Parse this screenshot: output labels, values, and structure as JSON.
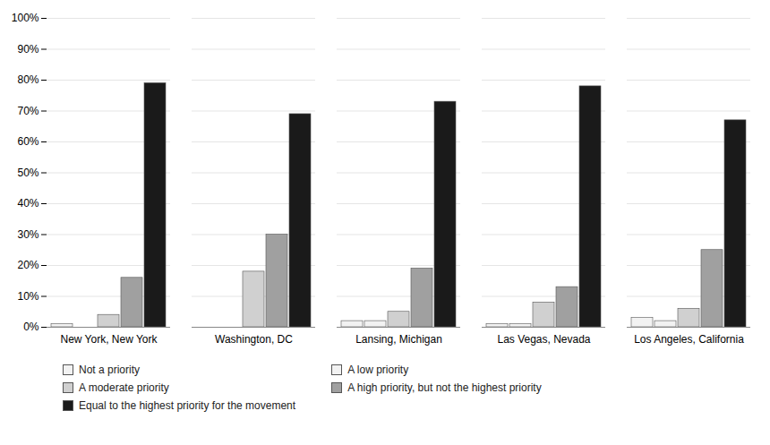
{
  "chart_data": {
    "type": "bar",
    "categories": [
      "New York, New York",
      "Washington, DC",
      "Lansing, Michigan",
      "Las Vegas, Nevada",
      "Los Angeles, California"
    ],
    "series": [
      {
        "name": "Not a priority",
        "color": "#f2f2f2",
        "values": [
          1,
          0,
          2,
          1,
          3
        ]
      },
      {
        "name": "A low priority",
        "color": "#f2f2f2",
        "values": [
          0,
          0,
          2,
          1,
          2
        ]
      },
      {
        "name": "A moderate priority",
        "color": "#d0d0d0",
        "values": [
          4,
          18,
          5,
          8,
          6
        ]
      },
      {
        "name": "A high priority, but not the highest priority",
        "color": "#a0a0a0",
        "values": [
          16,
          30,
          19,
          13,
          25
        ]
      },
      {
        "name": "Equal to the highest priority for the movement",
        "color": "#1a1a1a",
        "values": [
          79,
          69,
          73,
          78,
          67
        ]
      }
    ],
    "ylim": [
      0,
      100
    ],
    "yticks": [
      {
        "value": 0,
        "label": "0%"
      },
      {
        "value": 10,
        "label": "10%"
      },
      {
        "value": 20,
        "label": "20%"
      },
      {
        "value": 30,
        "label": "30%"
      },
      {
        "value": 40,
        "label": "40%"
      },
      {
        "value": 50,
        "label": "50%"
      },
      {
        "value": 60,
        "label": "60%"
      },
      {
        "value": 70,
        "label": "70%"
      },
      {
        "value": 80,
        "label": "80%"
      },
      {
        "value": 90,
        "label": "90%"
      },
      {
        "value": 100,
        "label": "100%"
      }
    ],
    "grid": true,
    "legend": "bottom"
  }
}
